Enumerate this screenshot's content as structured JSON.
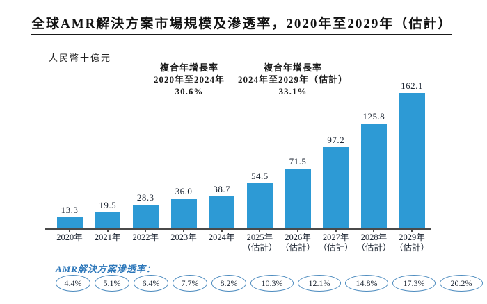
{
  "title": "全球AMR解決方案市場規模及滲透率，2020年至2029年（估計）",
  "unit_label": "人民幣十億元",
  "cagr_annotations": [
    {
      "line1": "複合年增長率",
      "line2": "2020年至2024年",
      "value": "30.6%"
    },
    {
      "line1": "複合年增長率",
      "line2": "2024年至2029年（估計）",
      "value": "33.1%"
    }
  ],
  "penetration_label": "AMR解決方案滲透率：",
  "colors": {
    "bar": "#2D9AD5",
    "axis": "#4a4a4a",
    "oval_border": "#4E8CBF",
    "penetration_label_blue": "#2B76B9",
    "text_dark": "#1d2633"
  },
  "chart_data": {
    "type": "bar",
    "title": "全球AMR解決方案市場規模及滲透率，2020年至2029年（估計）",
    "ylabel": "人民幣十億元",
    "categories": [
      "2020年",
      "2021年",
      "2022年",
      "2023年",
      "2024年",
      "2025年",
      "2026年",
      "2027年",
      "2028年",
      "2029年"
    ],
    "category_suffix": [
      "",
      "",
      "",
      "",
      "",
      "（估計）",
      "（估計）",
      "（估計）",
      "（估計）",
      "（估計）"
    ],
    "values": [
      13.3,
      19.5,
      28.3,
      36.0,
      38.7,
      54.5,
      71.5,
      97.2,
      125.8,
      162.1
    ],
    "ylim": [
      0,
      170
    ],
    "grid": false,
    "annotations": [
      {
        "label": "複合年增長率 2020年至2024年",
        "value": "30.6%"
      },
      {
        "label": "複合年增長率 2024年至2029年（估計）",
        "value": "33.1%"
      }
    ],
    "penetration_series": {
      "name": "AMR解決方案滲透率",
      "values": [
        "4.4%",
        "5.1%",
        "6.4%",
        "7.7%",
        "8.2%",
        "10.3%",
        "12.1%",
        "14.8%",
        "17.3%",
        "20.2%"
      ]
    }
  }
}
